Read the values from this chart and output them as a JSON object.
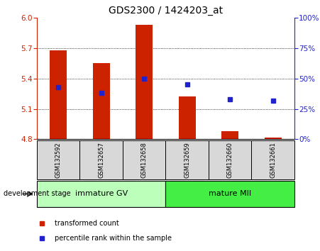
{
  "title": "GDS2300 / 1424203_at",
  "samples": [
    "GSM132592",
    "GSM132657",
    "GSM132658",
    "GSM132659",
    "GSM132660",
    "GSM132661"
  ],
  "red_values": [
    5.68,
    5.55,
    5.93,
    5.22,
    4.88,
    4.82
  ],
  "blue_percentiles": [
    43,
    38,
    50,
    45,
    33,
    32
  ],
  "ymin": 4.8,
  "ymax": 6.0,
  "yticks_left": [
    4.8,
    5.1,
    5.4,
    5.7,
    6.0
  ],
  "yticks_right": [
    0,
    25,
    50,
    75,
    100
  ],
  "bar_color": "#cc2200",
  "blue_color": "#2222cc",
  "bar_width": 0.4,
  "groups": [
    {
      "label": "immature GV",
      "indices": [
        0,
        1,
        2
      ],
      "color": "#bbffbb"
    },
    {
      "label": "mature MII",
      "indices": [
        3,
        4,
        5
      ],
      "color": "#44ee44"
    }
  ],
  "group_label": "development stage",
  "legend_items": [
    {
      "label": "transformed count",
      "color": "#cc2200"
    },
    {
      "label": "percentile rank within the sample",
      "color": "#2222cc"
    }
  ],
  "sample_bg_color": "#d8d8d8",
  "plot_bg": "#ffffff",
  "title_fontsize": 10,
  "tick_fontsize": 7.5,
  "sample_fontsize": 6,
  "group_fontsize": 8,
  "legend_fontsize": 7,
  "gridline_color": "#000000",
  "gridline_lw": 0.6,
  "gridline_ticks": [
    5.1,
    5.4,
    5.7
  ],
  "spine_color_left": "#cc2200",
  "spine_color_right": "#2222cc"
}
